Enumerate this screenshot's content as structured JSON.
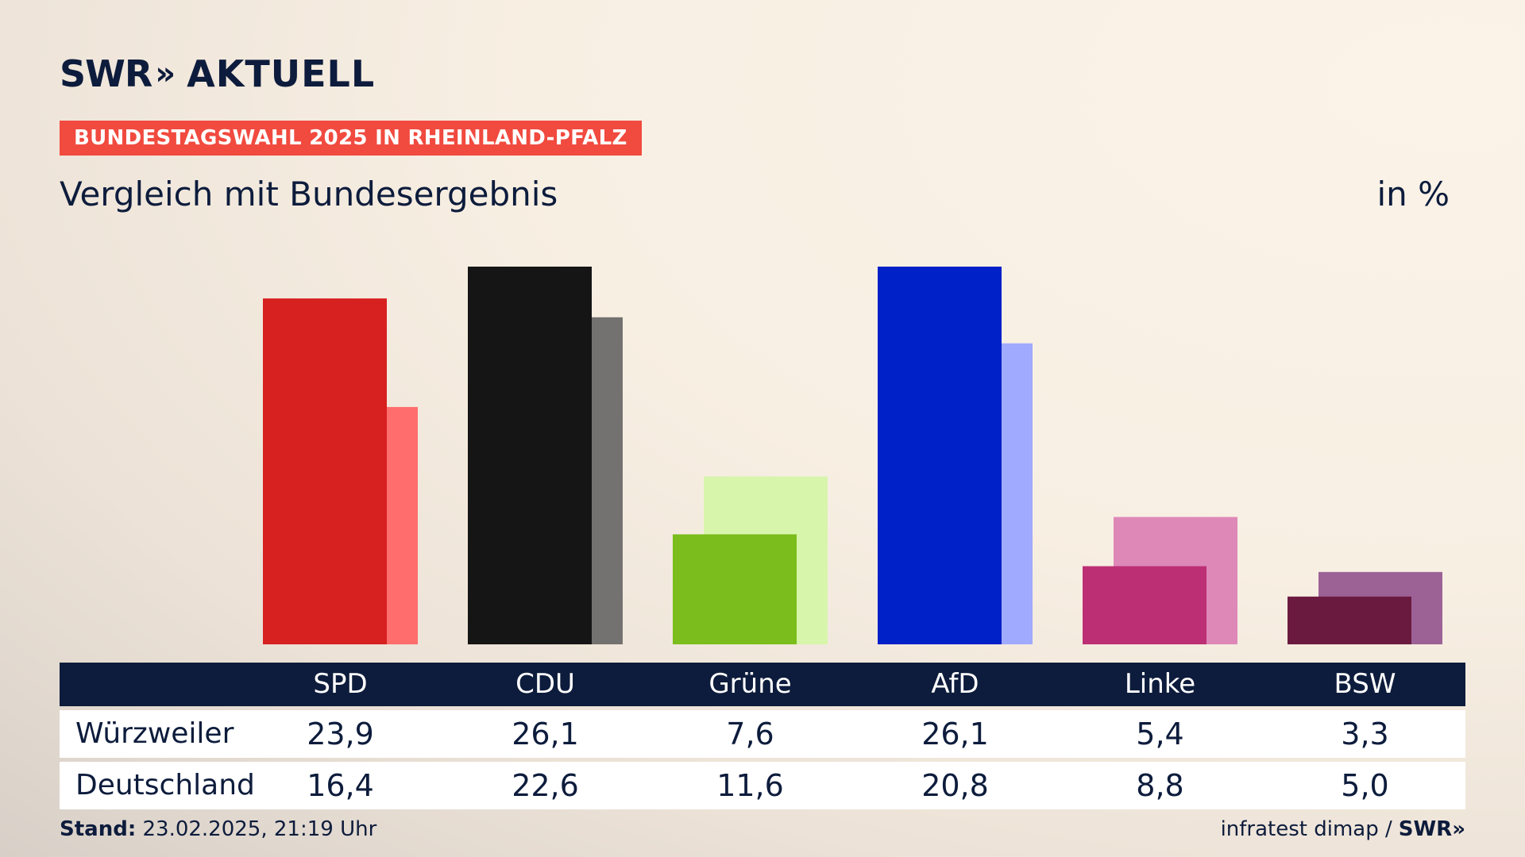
{
  "logo": {
    "brand": "SWR",
    "chevrons": "»",
    "product": "AKTUELL"
  },
  "badge": "BUNDESTAGSWAHL 2025 IN RHEINLAND-PFALZ",
  "subtitle": "Vergleich mit Bundesergebnis",
  "unit": "in %",
  "chart_data": {
    "type": "bar",
    "categories": [
      "SPD",
      "CDU",
      "Grüne",
      "AfD",
      "Linke",
      "BSW"
    ],
    "series": [
      {
        "name": "Würzweiler",
        "values": [
          23.9,
          26.1,
          7.6,
          26.1,
          5.4,
          3.3
        ]
      },
      {
        "name": "Deutschland",
        "values": [
          16.4,
          22.6,
          11.6,
          20.8,
          8.8,
          5.0
        ]
      }
    ],
    "value_labels": {
      "Würzweiler": [
        "23,9",
        "26,1",
        "7,6",
        "26,1",
        "5,4",
        "3,3"
      ],
      "Deutschland": [
        "16,4",
        "22,6",
        "11,6",
        "20,8",
        "8,8",
        "5,0"
      ]
    },
    "colors_primary": [
      "#d72020",
      "#151515",
      "#7abd1c",
      "#0020c8",
      "#bd2f74",
      "#6b1a3f"
    ],
    "colors_secondary": [
      "#ff6d6d",
      "#747270",
      "#d7f5ab",
      "#a0aaff",
      "#de88b8",
      "#9c6296"
    ],
    "ylim": [
      0,
      26.1
    ],
    "grid": false,
    "legend": "table-below"
  },
  "footer": {
    "stand_label": "Stand:",
    "stand_value": "23.02.2025, 21:19 Uhr",
    "source": "infratest dimap /",
    "source_brand": "SWR»"
  }
}
